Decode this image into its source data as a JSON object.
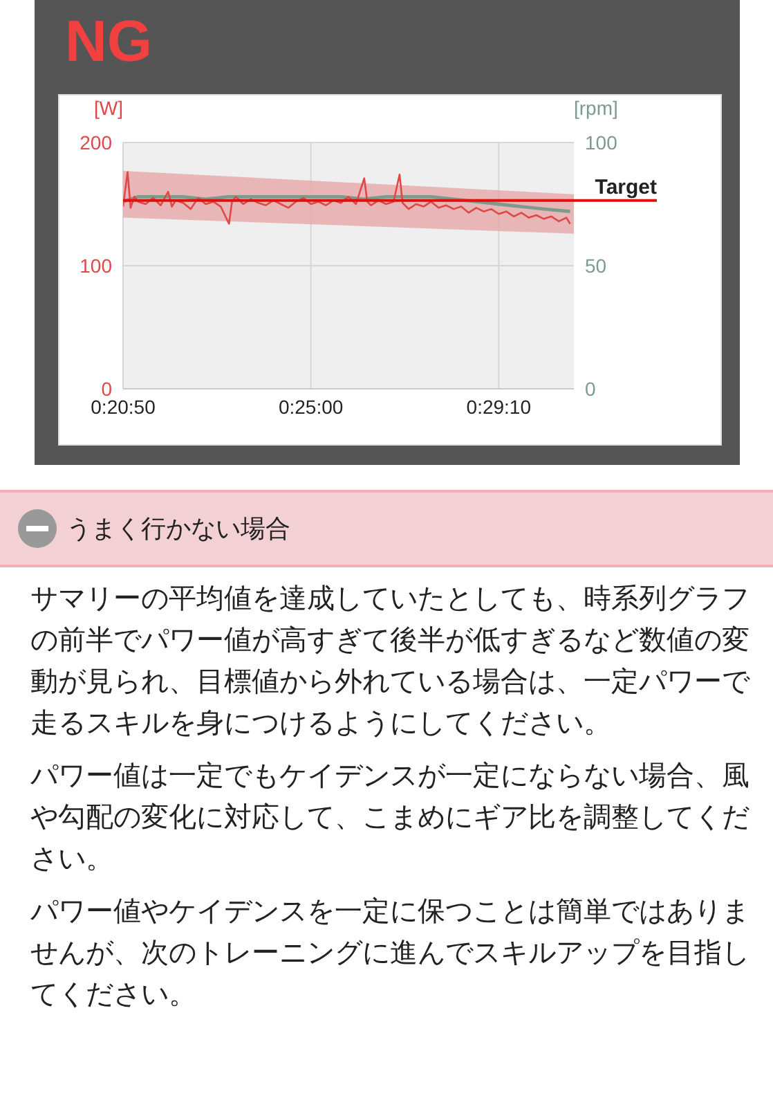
{
  "chart_data": {
    "type": "line",
    "title": "NG",
    "ylabel": "[W]",
    "y2label": "[rpm]",
    "xlim": [
      1250,
      1850
    ],
    "xticks": [
      {
        "value": 1250,
        "label": "0:20:50"
      },
      {
        "value": 1500,
        "label": "0:25:00"
      },
      {
        "value": 1750,
        "label": "0:29:10"
      }
    ],
    "ylim": [
      0,
      200
    ],
    "yticks": [
      0,
      100,
      200
    ],
    "y2lim": [
      0,
      100
    ],
    "y2ticks": [
      0,
      50,
      100
    ],
    "grid": true,
    "series": [
      {
        "color": "#e6a3a3",
        "x": [
          1250,
          1850
        ],
        "values": [
          null,
          null
        ],
        "lower": [
          139,
          126
        ],
        "upper": [
          177,
          158
        ]
      },
      {
        "color": "#7d9a8c",
        "axis": "y2",
        "x": [
          1250,
          1270,
          1300,
          1330,
          1360,
          1390,
          1420,
          1450,
          1480,
          1510,
          1540,
          1570,
          1600,
          1630,
          1660,
          1690,
          1720,
          1750,
          1780,
          1810,
          1845
        ],
        "values": [
          76,
          78,
          78,
          78,
          77,
          78,
          78,
          78,
          78,
          78,
          78,
          77,
          78,
          78,
          78,
          77,
          76,
          75,
          74,
          73,
          72
        ]
      },
      {
        "color": "#e04848",
        "x": [
          1250,
          1256,
          1260,
          1265,
          1270,
          1280,
          1290,
          1300,
          1310,
          1315,
          1320,
          1330,
          1340,
          1350,
          1360,
          1370,
          1380,
          1391,
          1395,
          1400,
          1410,
          1420,
          1430,
          1440,
          1450,
          1460,
          1470,
          1480,
          1490,
          1500,
          1510,
          1520,
          1530,
          1540,
          1550,
          1560,
          1571,
          1575,
          1580,
          1590,
          1600,
          1610,
          1618,
          1622,
          1630,
          1640,
          1650,
          1660,
          1670,
          1680,
          1690,
          1700,
          1710,
          1720,
          1730,
          1740,
          1750,
          1760,
          1770,
          1780,
          1790,
          1800,
          1810,
          1820,
          1830,
          1840,
          1845
        ],
        "values": [
          148,
          176,
          147,
          156,
          152,
          150,
          155,
          149,
          160,
          148,
          153,
          151,
          146,
          155,
          150,
          152,
          148,
          134,
          152,
          156,
          150,
          154,
          151,
          149,
          153,
          150,
          147,
          152,
          155,
          150,
          152,
          149,
          153,
          151,
          156,
          150,
          171,
          152,
          149,
          153,
          150,
          152,
          174,
          151,
          146,
          150,
          148,
          152,
          147,
          149,
          146,
          148,
          143,
          147,
          144,
          146,
          142,
          144,
          140,
          143,
          139,
          141,
          138,
          140,
          136,
          139,
          134
        ]
      }
    ],
    "ref_lines": [
      {
        "axis": "y",
        "value": 153,
        "label": "Target",
        "color": "#e01010"
      }
    ],
    "annotations": [
      "うまく行かない場合",
      "サマリーの平均値を達成していたとしても、時系列グラフの前半でパワー値が高すぎて後半が低すぎるなど数値の変動が見られ、目標値から外れている場合は、一定パワーで走るスキルを身につけるようにしてください。",
      "パワー値は一定でもケイデンスが一定にならない場合、風や勾配の変化に対応して、こまめにギア比を調整してください。",
      "パワー値やケイデンスを一定に保つことは簡単ではありませんが、次のトレーニングに進んでスキルアップを目指してください。"
    ]
  }
}
